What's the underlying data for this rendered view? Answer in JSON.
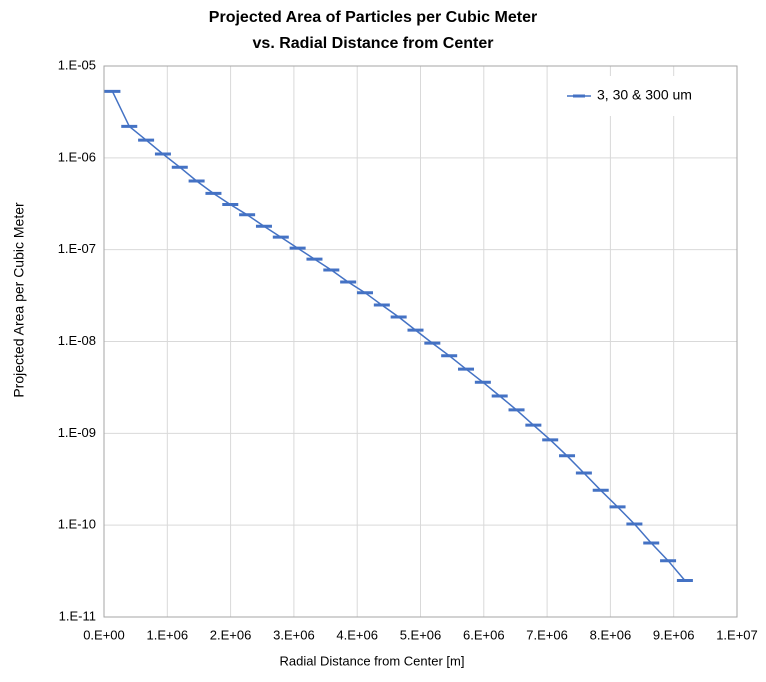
{
  "chart_data": {
    "type": "line",
    "title": [
      "Projected Area of Particles per Cubic Meter",
      "vs. Radial Distance from Center"
    ],
    "x_label": "Radial Distance from Center [m]",
    "y_label": "Projected Area per Cubic Meter",
    "x": [
      133000,
      399000,
      665000,
      931000,
      1197000,
      1463000,
      1729000,
      1995000,
      2261000,
      2527000,
      2793000,
      3059000,
      3325000,
      3591000,
      3857000,
      4123000,
      4389000,
      4655000,
      4921000,
      5187000,
      5453000,
      5719000,
      5985000,
      6251000,
      6517000,
      6783000,
      7049000,
      7315000,
      7581000,
      7847000,
      8113000,
      8379000,
      8645000,
      8911000,
      9177000
    ],
    "series": [
      {
        "name": "3, 30 & 300 um",
        "color": "#4472c4",
        "values": [
          5.3e-06,
          2.2e-06,
          1.56e-06,
          1.1e-06,
          7.9e-07,
          5.6e-07,
          4.1e-07,
          3.1e-07,
          2.4e-07,
          1.8e-07,
          1.37e-07,
          1.04e-07,
          7.9e-08,
          6e-08,
          4.45e-08,
          3.4e-08,
          2.5e-08,
          1.85e-08,
          1.33e-08,
          9.6e-09,
          7e-09,
          5e-09,
          3.6e-09,
          2.55e-09,
          1.8e-09,
          1.23e-09,
          8.5e-10,
          5.7e-10,
          3.7e-10,
          2.4e-10,
          1.58e-10,
          1.03e-10,
          6.4e-11,
          4.1e-11,
          2.5e-11
        ]
      }
    ],
    "xlim": [
      0,
      10000000
    ],
    "xticks": [
      {
        "value": 0,
        "label": "0.E+00"
      },
      {
        "value": 1000000,
        "label": "1.E+06"
      },
      {
        "value": 2000000,
        "label": "2.E+06"
      },
      {
        "value": 3000000,
        "label": "3.E+06"
      },
      {
        "value": 4000000,
        "label": "4.E+06"
      },
      {
        "value": 5000000,
        "label": "5.E+06"
      },
      {
        "value": 6000000,
        "label": "6.E+06"
      },
      {
        "value": 7000000,
        "label": "7.E+06"
      },
      {
        "value": 8000000,
        "label": "8.E+06"
      },
      {
        "value": 9000000,
        "label": "9.E+06"
      },
      {
        "value": 10000000,
        "label": "1.E+07"
      }
    ],
    "ylim": [
      1e-11,
      1e-05
    ],
    "yticks": [
      {
        "value": 1e-11,
        "label": "1.E-11"
      },
      {
        "value": 1e-10,
        "label": "1.E-10"
      },
      {
        "value": 1e-09,
        "label": "1.E-09"
      },
      {
        "value": 1e-08,
        "label": "1.E-08"
      },
      {
        "value": 1e-07,
        "label": "1.E-07"
      },
      {
        "value": 1e-06,
        "label": "1.E-06"
      },
      {
        "value": 1e-05,
        "label": "1.E-05"
      }
    ],
    "y_log": true,
    "grid": true,
    "legend": "top-right"
  }
}
